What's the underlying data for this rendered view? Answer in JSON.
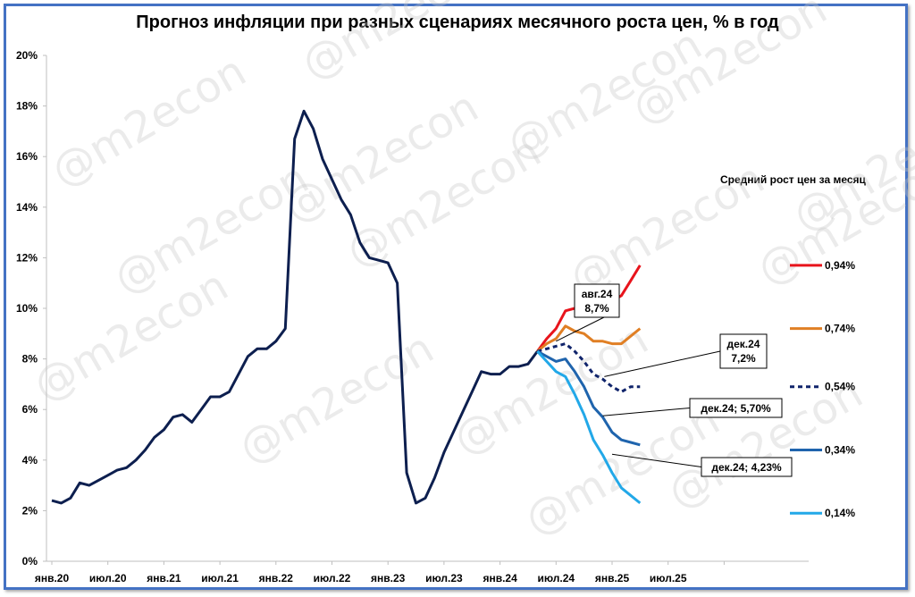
{
  "watermark": "@m2econ",
  "chart_data": {
    "type": "line",
    "title": "Прогноз инфляции при разных сценариях месячного роста цен, % в год",
    "legend_title": "Средний рост цен за месяц",
    "xlabel": "",
    "ylabel": "",
    "ylim": [
      0,
      20
    ],
    "yticks": [
      "0%",
      "2%",
      "4%",
      "6%",
      "8%",
      "10%",
      "12%",
      "14%",
      "16%",
      "18%",
      "20%"
    ],
    "xticks": [
      "янв.20",
      "июл.20",
      "янв.21",
      "июл.21",
      "янв.22",
      "июл.22",
      "янв.23",
      "июл.23",
      "янв.24",
      "июл.24",
      "янв.25",
      "июл.25"
    ],
    "x_start": "2020-01",
    "colors": {
      "history": "#0d1f4f",
      "red": "#e8141c",
      "orange": "#e07f24",
      "navy": "#10246b",
      "mid_blue": "#1f64ad",
      "light_blue": "#22a8e8"
    },
    "history": {
      "name": "",
      "values": [
        2.4,
        2.3,
        2.5,
        3.1,
        3.0,
        3.2,
        3.4,
        3.6,
        3.7,
        4.0,
        4.4,
        4.9,
        5.2,
        5.7,
        5.8,
        5.5,
        6.0,
        6.5,
        6.5,
        6.7,
        7.4,
        8.1,
        8.4,
        8.4,
        8.7,
        9.2,
        16.7,
        17.8,
        17.1,
        15.9,
        15.1,
        14.3,
        13.7,
        12.6,
        12.0,
        11.9,
        11.8,
        11.0,
        3.5,
        2.3,
        2.5,
        3.3,
        4.3,
        5.1,
        5.9,
        6.7,
        7.5,
        7.4,
        7.4,
        7.7,
        7.7,
        7.8,
        8.3
      ]
    },
    "scenarios": [
      {
        "name": "0,94%",
        "color": "#e8141c",
        "dash": false,
        "values": [
          8.3,
          8.8,
          9.2,
          9.9,
          10.0,
          10.1,
          9.9,
          10.2,
          10.3,
          10.5,
          11.1,
          11.7
        ]
      },
      {
        "name": "0,74%",
        "color": "#e07f24",
        "dash": false,
        "values": [
          8.3,
          8.6,
          8.8,
          9.3,
          9.1,
          9.0,
          8.7,
          8.7,
          8.6,
          8.6,
          8.9,
          9.2
        ]
      },
      {
        "name": "0,54%",
        "color": "#10246b",
        "dash": true,
        "values": [
          8.3,
          8.4,
          8.5,
          8.6,
          8.3,
          7.9,
          7.4,
          7.2,
          6.9,
          6.7,
          6.9,
          6.9
        ]
      },
      {
        "name": "0,34%",
        "color": "#1f64ad",
        "dash": false,
        "values": [
          8.3,
          8.1,
          7.9,
          8.0,
          7.5,
          6.9,
          6.1,
          5.7,
          5.1,
          4.8,
          4.7,
          4.6
        ]
      },
      {
        "name": "0,14%",
        "color": "#22a8e8",
        "dash": false,
        "values": [
          8.3,
          7.9,
          7.5,
          7.3,
          6.6,
          5.8,
          4.8,
          4.2,
          3.5,
          2.9,
          2.6,
          2.3
        ]
      }
    ],
    "legend_y_values": [
      11.7,
      9.2,
      6.9,
      4.4,
      1.9
    ],
    "annotations": [
      {
        "line1": "авг.24",
        "line2": "8,7%"
      },
      {
        "line1": "дек.24",
        "line2": "7,2%"
      },
      {
        "line1": "дек.24; 5,70%",
        "line2": ""
      },
      {
        "line1": "дек.24; 4,23%",
        "line2": ""
      }
    ]
  }
}
